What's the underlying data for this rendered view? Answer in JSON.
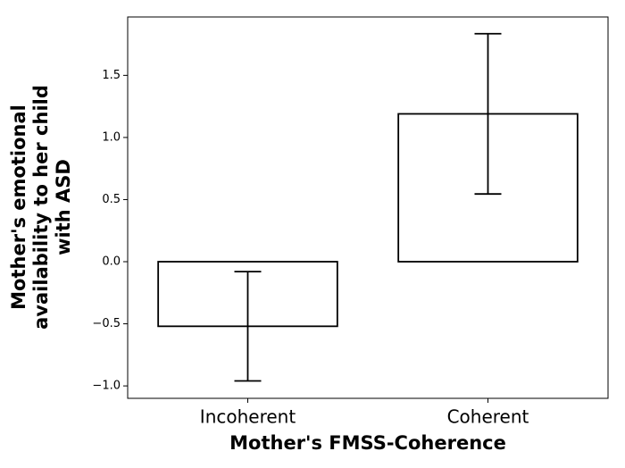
{
  "chart_data": {
    "type": "bar",
    "xlabel": "Mother's FMSS-Coherence",
    "ylabel": [
      "Mother's emotional",
      "availability to her child",
      "with ASD"
    ],
    "categories": [
      "Incoherent",
      "Coherent"
    ],
    "values": [
      -0.52,
      1.19
    ],
    "errors": [
      0.44,
      0.645
    ],
    "color": "#ffffff",
    "edgecolor": "#000000",
    "ylim": [
      -1.1,
      1.97
    ],
    "yticks": [
      {
        "value": -1.0,
        "label": "−1.0"
      },
      {
        "value": -0.5,
        "label": "−0.5"
      },
      {
        "value": 0.0,
        "label": "0.0"
      },
      {
        "value": 0.5,
        "label": "0.5"
      },
      {
        "value": 1.0,
        "label": "1.0"
      },
      {
        "value": 1.5,
        "label": "1.5"
      }
    ],
    "grid": false
  }
}
